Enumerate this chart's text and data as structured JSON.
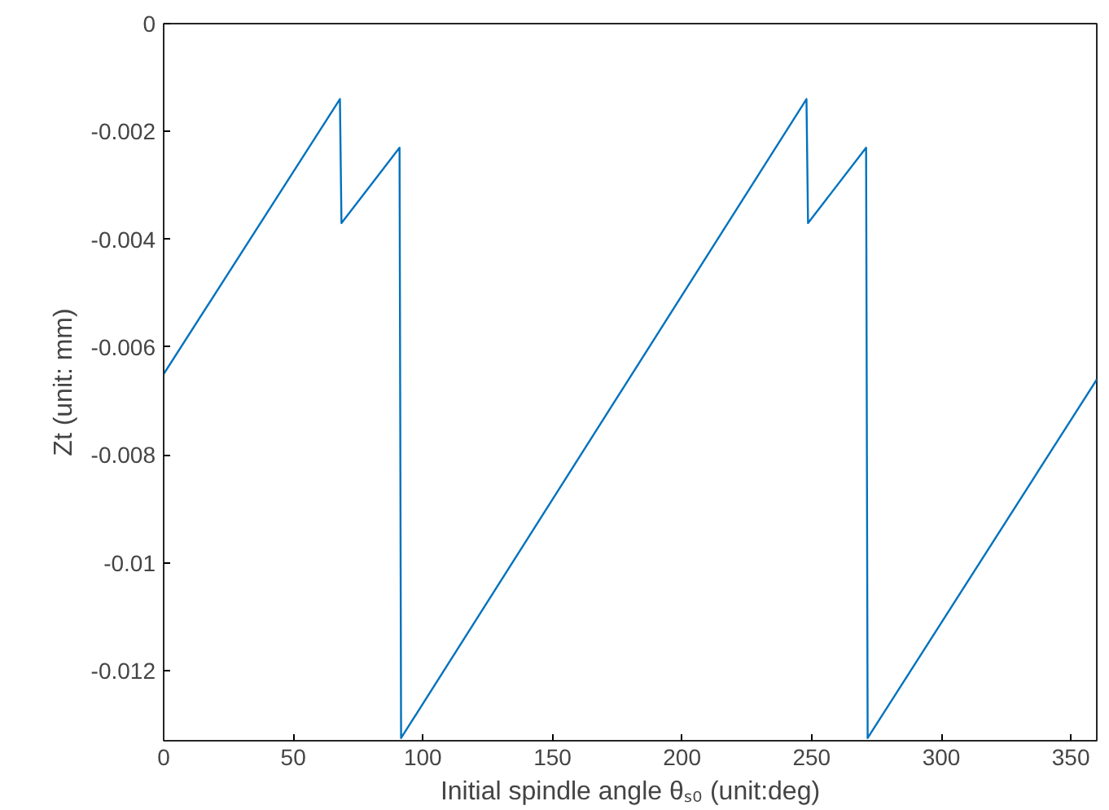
{
  "chart_data": {
    "type": "line",
    "xlabel": "Initial spindle angle θₛ₀ (unit:deg)",
    "ylabel": "Zt (unit: mm)",
    "x": [
      0,
      68,
      68.6,
      91,
      91.6,
      248,
      248.6,
      271,
      271.6,
      360
    ],
    "series": [
      {
        "color": "#0072bd",
        "values": [
          -0.0065,
          -0.0014,
          -0.0037,
          -0.0023,
          -0.01325,
          -0.0014,
          -0.0037,
          -0.0023,
          -0.01325,
          -0.0066
        ]
      }
    ],
    "xlim": [
      0,
      360
    ],
    "ylim": [
      -0.0133,
      0
    ],
    "xticks": [
      0,
      50,
      100,
      150,
      200,
      250,
      300,
      350
    ],
    "yticks": [
      -0.012,
      -0.01,
      -0.008,
      -0.006,
      -0.004,
      -0.002,
      0
    ],
    "grid": false,
    "marker": "none",
    "line_style": "solid"
  }
}
